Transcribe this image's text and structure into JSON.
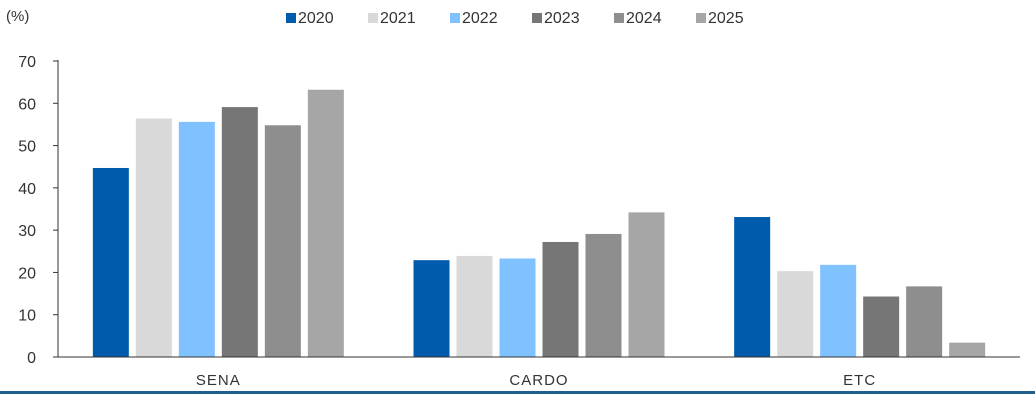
{
  "chart_data": {
    "type": "bar",
    "unit_label": "(%)",
    "categories": [
      "SENA",
      "CARDO",
      "ETC"
    ],
    "series": [
      {
        "name": "2020",
        "color": "#005bac",
        "values": [
          44.7,
          22.9,
          33.1
        ]
      },
      {
        "name": "2021",
        "color": "#d9d9d9",
        "values": [
          56.4,
          23.9,
          20.3
        ]
      },
      {
        "name": "2022",
        "color": "#80c1ff",
        "values": [
          55.6,
          23.3,
          21.8
        ]
      },
      {
        "name": "2023",
        "color": "#767676",
        "values": [
          59.1,
          27.2,
          14.3
        ]
      },
      {
        "name": "2024",
        "color": "#8e8e8e",
        "values": [
          54.8,
          29.1,
          16.7
        ]
      },
      {
        "name": "2025",
        "color": "#a6a6a6",
        "values": [
          63.2,
          34.2,
          3.4
        ]
      }
    ],
    "ylim": [
      0,
      70
    ],
    "yticks": [
      0,
      10,
      20,
      30,
      40,
      50,
      60,
      70
    ],
    "grid": false,
    "legend_position": "top-center",
    "accent_color": "#1f5f8b"
  }
}
